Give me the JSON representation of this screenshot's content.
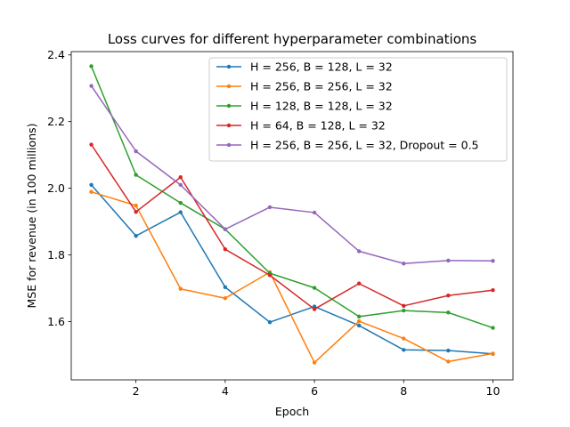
{
  "chart_data": {
    "type": "line",
    "title": "Loss curves for different hyperparameter combinations",
    "xlabel": "Epoch",
    "ylabel": "MSE for revenue (in 100 millions)",
    "x": [
      1,
      2,
      3,
      4,
      5,
      6,
      7,
      8,
      9,
      10
    ],
    "xlim": [
      0.55,
      10.45
    ],
    "ylim": [
      1.425,
      2.41
    ],
    "xticks": [
      2,
      4,
      6,
      8,
      10
    ],
    "yticks": [
      1.6,
      1.8,
      2.0,
      2.2,
      2.4
    ],
    "xtick_labels": [
      "2",
      "4",
      "6",
      "8",
      "10"
    ],
    "ytick_labels": [
      "1.6",
      "1.8",
      "2.0",
      "2.2",
      "2.4"
    ],
    "grid": false,
    "legend_position": "top-right",
    "series": [
      {
        "name": "H = 256, B = 128, L = 32",
        "color": "#1f77b4",
        "values": [
          2.01,
          1.857,
          1.928,
          1.703,
          1.598,
          1.645,
          1.588,
          1.515,
          1.513,
          1.503
        ]
      },
      {
        "name": "H = 256, B = 256, L = 32",
        "color": "#ff7f0e",
        "values": [
          1.989,
          1.948,
          1.698,
          1.67,
          1.748,
          1.477,
          1.601,
          1.549,
          1.48,
          1.504
        ]
      },
      {
        "name": "H = 128, B = 128, L = 32",
        "color": "#2ca02c",
        "values": [
          2.366,
          2.04,
          1.956,
          1.877,
          1.745,
          1.701,
          1.615,
          1.633,
          1.627,
          1.581
        ]
      },
      {
        "name": "H = 64, B = 128, L = 32",
        "color": "#d62728",
        "values": [
          2.131,
          1.929,
          2.033,
          1.817,
          1.739,
          1.637,
          1.714,
          1.647,
          1.678,
          1.694
        ]
      },
      {
        "name": "H = 256, B = 256, L = 32, Dropout = 0.5",
        "color": "#9467bd",
        "values": [
          2.307,
          2.111,
          2.01,
          1.877,
          1.943,
          1.927,
          1.811,
          1.774,
          1.783,
          1.782
        ]
      }
    ]
  }
}
